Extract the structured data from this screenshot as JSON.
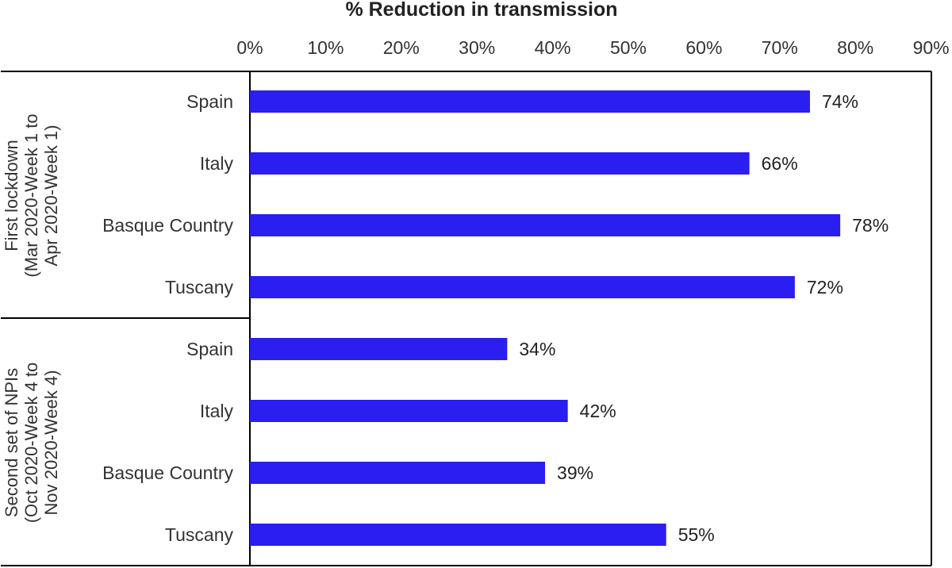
{
  "chart_data": {
    "type": "bar",
    "orientation": "horizontal",
    "title": "% Reduction in transmission",
    "xlim": [
      0,
      90
    ],
    "x_ticks": [
      "0%",
      "10%",
      "20%",
      "30%",
      "40%",
      "50%",
      "60%",
      "70%",
      "80%",
      "90%"
    ],
    "value_suffix": "%",
    "bar_color": "#2a1ef0",
    "groups": [
      {
        "label_lines": [
          "First lockdown",
          "(Mar 2020-Week 1 to",
          "Apr 2020-Week 1)"
        ],
        "categories": [
          "Spain",
          "Italy",
          "Basque Country",
          "Tuscany"
        ],
        "values": [
          74,
          66,
          78,
          72
        ],
        "value_labels": [
          "74%",
          "66%",
          "78%",
          "72%"
        ]
      },
      {
        "label_lines": [
          "Second set of NPIs",
          "(Oct 2020-Week 4 to",
          "Nov 2020-Week 4)"
        ],
        "categories": [
          "Spain",
          "Italy",
          "Basque Country",
          "Tuscany"
        ],
        "values": [
          34,
          42,
          39,
          55
        ],
        "value_labels": [
          "34%",
          "42%",
          "39%",
          "55%"
        ]
      }
    ]
  }
}
